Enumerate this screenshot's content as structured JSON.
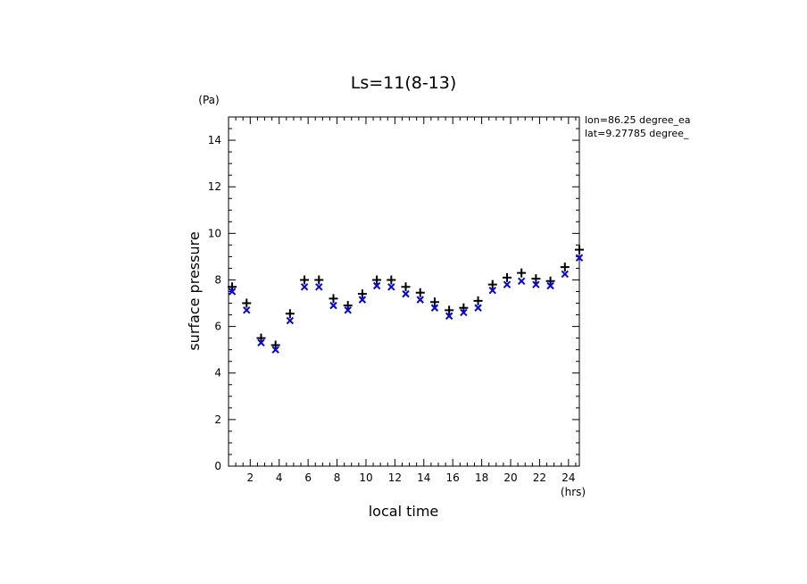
{
  "chart_data": {
    "type": "scatter",
    "title": "Ls=11(8-13)",
    "xlabel": "local time",
    "ylabel": "surface pressure",
    "x_unit": "(hrs)",
    "y_unit": "(Pa)",
    "annotations": [
      "lon=86.25 degree_ea",
      "lat=9.27785 degree_"
    ],
    "xlim": [
      0.5,
      24.75
    ],
    "ylim": [
      0,
      15
    ],
    "x_ticks": [
      2,
      4,
      6,
      8,
      10,
      12,
      14,
      16,
      18,
      20,
      22,
      24
    ],
    "y_ticks": [
      0,
      2,
      4,
      6,
      8,
      10,
      12,
      14
    ],
    "grid": false,
    "series": [
      {
        "marker": "plus",
        "color": "#000000",
        "x": [
          0.75,
          1.75,
          2.75,
          3.75,
          4.75,
          5.75,
          6.75,
          7.75,
          8.75,
          9.75,
          10.75,
          11.75,
          12.75,
          13.75,
          14.75,
          15.75,
          16.75,
          17.75,
          18.75,
          19.75,
          20.75,
          21.75,
          22.75,
          23.75,
          24.75
        ],
        "values": [
          7.7,
          7.0,
          5.5,
          5.2,
          6.55,
          8.0,
          8.0,
          7.2,
          6.9,
          7.4,
          8.0,
          8.0,
          7.7,
          7.45,
          7.05,
          6.7,
          6.8,
          7.1,
          7.8,
          8.1,
          8.3,
          8.05,
          7.95,
          8.55,
          9.3
        ]
      },
      {
        "marker": "x",
        "color": "#0000ff",
        "x": [
          0.75,
          1.75,
          2.75,
          3.75,
          4.75,
          5.75,
          6.75,
          7.75,
          8.75,
          9.75,
          10.75,
          11.75,
          12.75,
          13.75,
          14.75,
          15.75,
          16.75,
          17.75,
          18.75,
          19.75,
          20.75,
          21.75,
          22.75,
          23.75,
          24.75
        ],
        "values": [
          7.5,
          6.7,
          5.3,
          5.0,
          6.25,
          7.7,
          7.7,
          6.9,
          6.7,
          7.15,
          7.75,
          7.7,
          7.4,
          7.15,
          6.8,
          6.45,
          6.6,
          6.8,
          7.55,
          7.8,
          7.95,
          7.8,
          7.75,
          8.25,
          8.95
        ]
      }
    ]
  }
}
